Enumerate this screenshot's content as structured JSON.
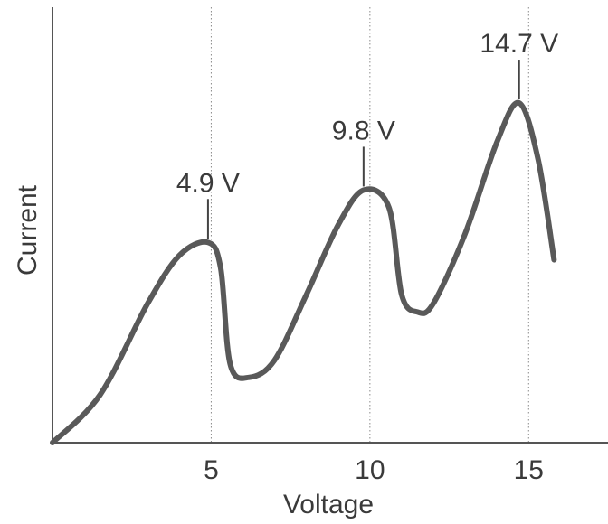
{
  "chart_data": {
    "type": "line",
    "title": "",
    "xlabel": "Voltage",
    "ylabel": "Current",
    "xlim": [
      0,
      17.5
    ],
    "ylim": [
      0,
      1
    ],
    "grid": false,
    "x_ticks": [
      5,
      10,
      15
    ],
    "x_tick_labels": [
      "5",
      "10",
      "15"
    ],
    "y_ticks": [],
    "vertical_reference_lines": [
      5,
      10,
      15
    ],
    "series": [
      {
        "x": [
          0,
          1.5,
          3.0,
          4.0,
          4.9,
          5.3,
          5.6,
          6.2,
          7.0,
          8.0,
          9.0,
          9.8,
          10.6,
          11.0,
          11.5,
          12.0,
          13.0,
          14.0,
          14.7,
          15.3,
          15.8
        ],
        "y": [
          0,
          0.11,
          0.32,
          0.43,
          0.46,
          0.4,
          0.18,
          0.15,
          0.19,
          0.34,
          0.5,
          0.58,
          0.54,
          0.34,
          0.3,
          0.32,
          0.48,
          0.69,
          0.78,
          0.65,
          0.42
        ]
      }
    ],
    "annotations": [
      {
        "text": "4.9 V",
        "x": 4.9,
        "y": 0.46
      },
      {
        "text": "9.8 V",
        "x": 9.8,
        "y": 0.58
      },
      {
        "text": "14.7 V",
        "x": 14.7,
        "y": 0.78
      }
    ]
  }
}
